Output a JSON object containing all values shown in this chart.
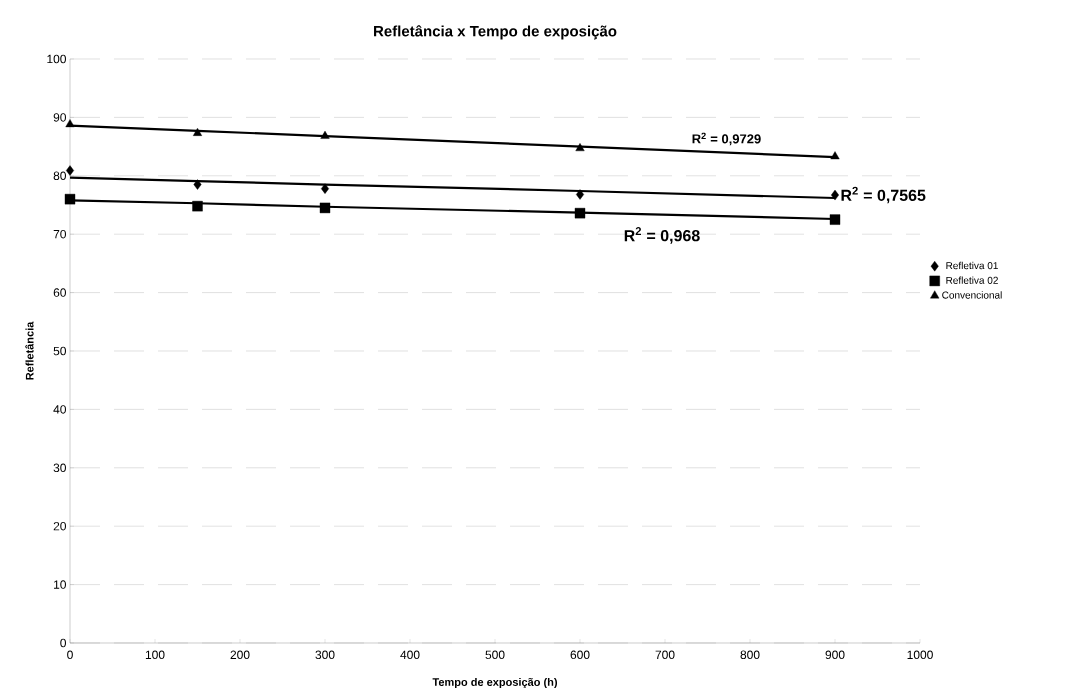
{
  "chart_data": {
    "type": "scatter",
    "title": "Refletância x Tempo de exposição",
    "xlabel": "Tempo de exposição (h)",
    "ylabel": "Refletância",
    "x": [
      0,
      150,
      300,
      600,
      900
    ],
    "series": [
      {
        "name": "Refletiva 01",
        "color": "#000000",
        "marker": "diamond",
        "values": [
          80.9,
          78.5,
          77.8,
          76.8,
          76.7
        ]
      },
      {
        "name": "Refletiva 02",
        "color": "#000000",
        "marker": "square",
        "values": [
          76.0,
          74.8,
          74.5,
          73.6,
          72.5
        ]
      },
      {
        "name": "Convencional",
        "color": "#000000",
        "marker": "triangle",
        "values": [
          88.8,
          87.3,
          86.8,
          84.7,
          83.3
        ]
      },
      {
        "type": "line",
        "color": "#000000",
        "marker": "none",
        "values": [
          79.7,
          79.1,
          78.5,
          77.4,
          76.2
        ]
      },
      {
        "type": "line",
        "color": "#000000",
        "marker": "none",
        "values": [
          75.8,
          75.3,
          74.7,
          73.7,
          72.6
        ]
      },
      {
        "type": "line",
        "color": "#000000",
        "marker": "none",
        "values": [
          88.6,
          87.7,
          86.8,
          85.0,
          83.2
        ]
      }
    ],
    "annotations": [
      "R$^{2}$ = 0,9729",
      "R$^{2}$ = 0,7565",
      "R$^{2}$ = 0,968"
    ],
    "xlim": [
      0,
      1000
    ],
    "xticks": [
      0,
      100,
      200,
      300,
      400,
      500,
      600,
      700,
      800,
      900,
      1000
    ],
    "ylim": [
      0,
      100
    ],
    "yticks": [
      0,
      10,
      20,
      30,
      40,
      50,
      60,
      70,
      80,
      90,
      100
    ],
    "grid": "y",
    "legend": "right"
  }
}
